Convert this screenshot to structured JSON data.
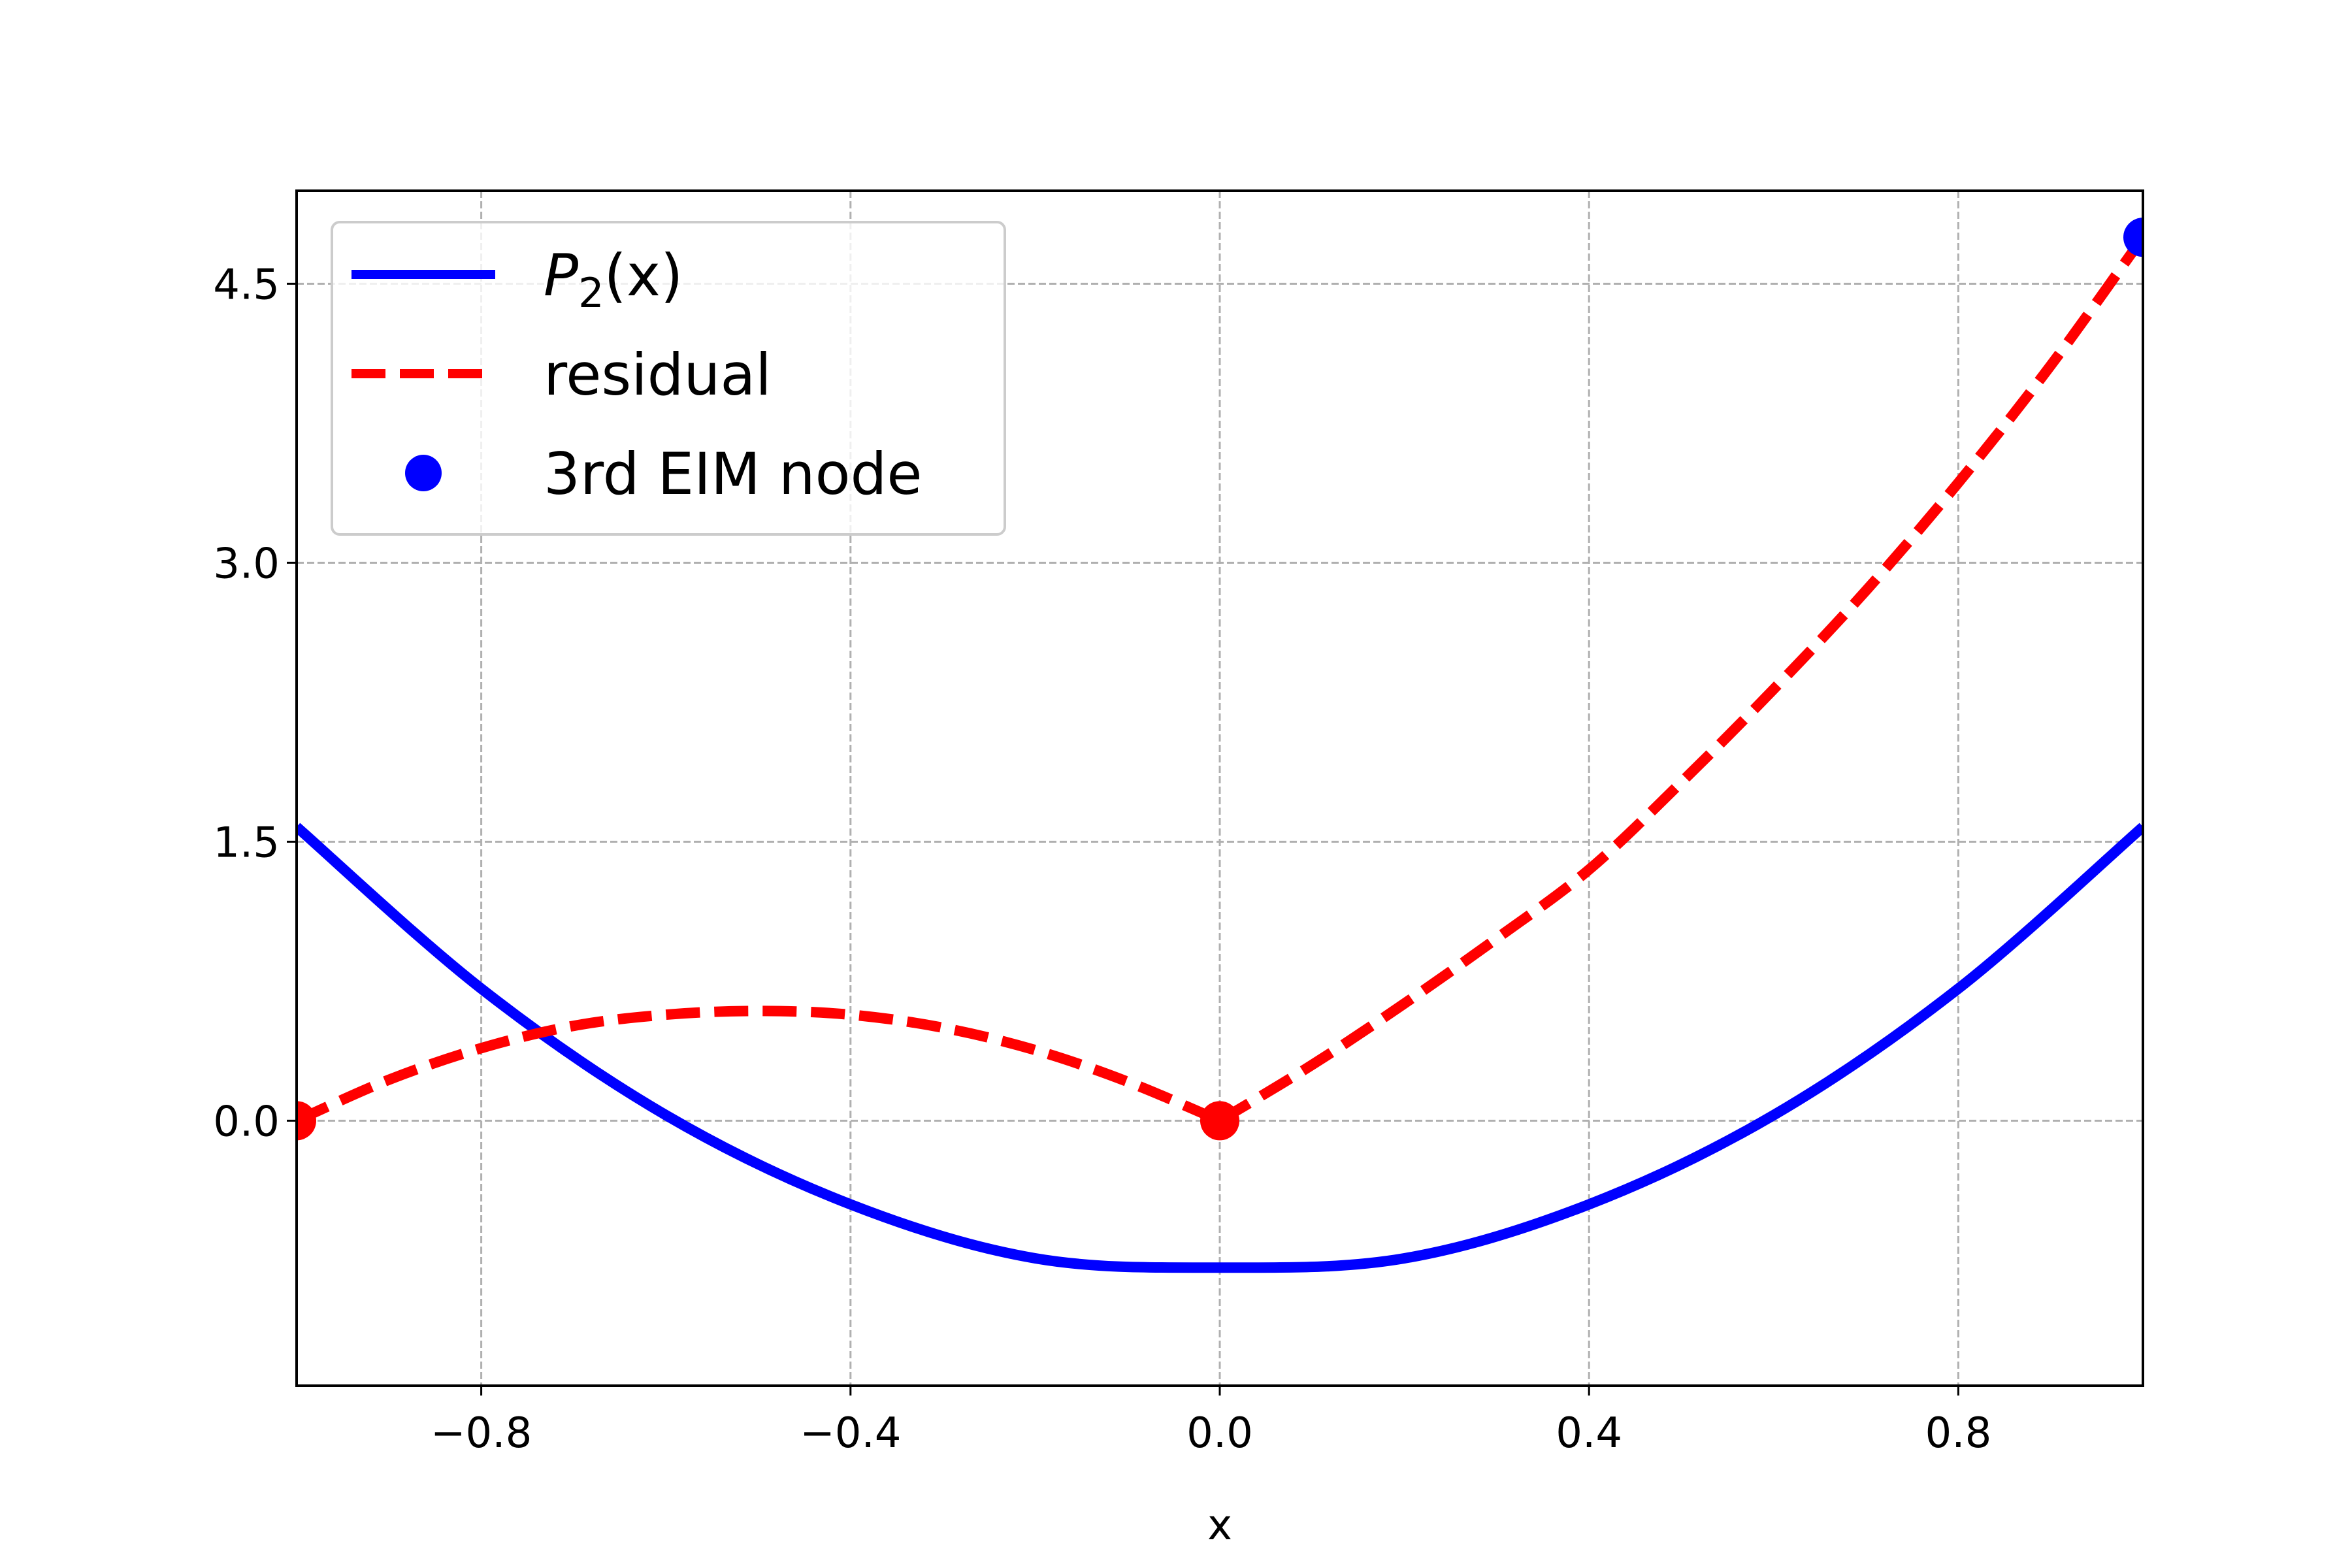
{
  "chart_data": {
    "type": "line",
    "title": "",
    "xlabel": "x",
    "ylabel": "",
    "xlim": [
      -1.0,
      1.0
    ],
    "ylim": [
      -1.425,
      5.0
    ],
    "xticks": [
      -0.8,
      -0.4,
      0.0,
      0.4,
      0.8
    ],
    "xtick_labels": [
      "−0.8",
      "−0.4",
      "0.0",
      "0.4",
      "0.8"
    ],
    "yticks": [
      0.0,
      1.5,
      3.0,
      4.5
    ],
    "ytick_labels": [
      "0.0",
      "1.5",
      "3.0",
      "4.5"
    ],
    "grid": true,
    "legend_position": "top-left",
    "series": [
      {
        "name": "P₂(x)",
        "legend_main": "P",
        "legend_sub": "2",
        "legend_tail": "(x)",
        "style": "solid",
        "color": "#0000ff",
        "x": [
          -1.0,
          -0.8,
          -0.6,
          -0.4,
          -0.2,
          0.0,
          0.2,
          0.4,
          0.6,
          0.8,
          1.0
        ],
        "y": [
          1.58,
          0.71,
          0.03,
          -0.45,
          -0.74,
          -0.79,
          -0.74,
          -0.45,
          0.03,
          0.71,
          1.58
        ]
      },
      {
        "name": "residual",
        "style": "dashed",
        "color": "#ff0000",
        "x": [
          -1.0,
          -0.9,
          -0.8,
          -0.7,
          -0.6,
          -0.5,
          -0.4,
          -0.3,
          -0.2,
          -0.1,
          0.0,
          0.1,
          0.2,
          0.3,
          0.4,
          0.5,
          0.6,
          0.7,
          0.8,
          0.9,
          1.0
        ],
        "y": [
          0.0,
          0.22,
          0.39,
          0.51,
          0.57,
          0.59,
          0.57,
          0.5,
          0.38,
          0.21,
          0.0,
          0.3,
          0.63,
          0.98,
          1.35,
          1.82,
          2.32,
          2.85,
          3.43,
          4.06,
          4.75
        ]
      }
    ],
    "residual_zero_markers": {
      "color": "#ff0000",
      "x": [
        -1.0,
        0.0
      ],
      "y": [
        0.0,
        0.0
      ]
    },
    "eim_node": {
      "name": "3rd EIM node",
      "color": "#0000ff",
      "x": 1.0,
      "y": 4.75
    }
  }
}
